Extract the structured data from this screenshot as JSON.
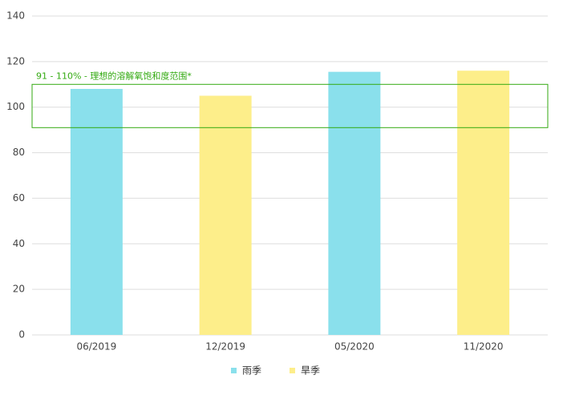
{
  "chart_data": {
    "type": "bar",
    "categories": [
      "06/2019",
      "12/2019",
      "05/2020",
      "11/2020"
    ],
    "series": [
      {
        "name": "雨季",
        "color": "#8ae0ec",
        "values": [
          108,
          null,
          115.5,
          null
        ]
      },
      {
        "name": "旱季",
        "color": "#fdee8a",
        "values": [
          null,
          105,
          null,
          116
        ]
      }
    ],
    "ylim": [
      0,
      140
    ],
    "yticks": [
      0,
      20,
      40,
      60,
      80,
      100,
      120,
      140
    ],
    "grid": true,
    "band": {
      "range": [
        91,
        110
      ],
      "label": "91 - 110% - 理想的溶解氧饱和度范围*",
      "color": "#33aa11"
    },
    "legend": "bottom"
  }
}
